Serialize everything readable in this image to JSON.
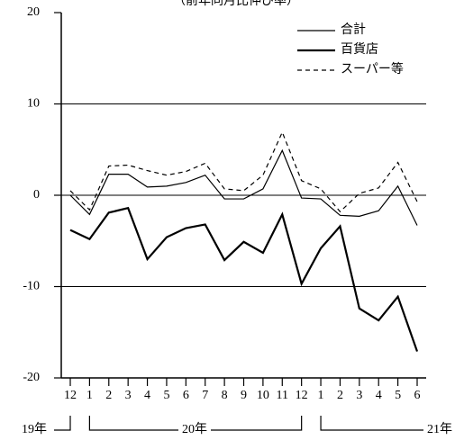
{
  "chart_data": {
    "type": "line",
    "title": "（前年同月比伸び率）",
    "categories": [
      "12",
      "1",
      "2",
      "3",
      "4",
      "5",
      "6",
      "7",
      "8",
      "9",
      "10",
      "11",
      "12",
      "1",
      "2",
      "3",
      "4",
      "5",
      "6"
    ],
    "x_groups": [
      "19年",
      "20年",
      "21年"
    ],
    "series": [
      {
        "name": "合計",
        "color": "#000000",
        "style": "thin",
        "values": [
          0.0,
          -2.1,
          2.3,
          2.3,
          0.9,
          1.0,
          1.4,
          2.2,
          -0.4,
          -0.4,
          0.7,
          4.9,
          -0.3,
          -0.4,
          -2.2,
          -2.3,
          -1.7,
          1.0,
          -3.3
        ]
      },
      {
        "name": "百貨店",
        "color": "#000000",
        "style": "thick",
        "values": [
          -3.8,
          -4.8,
          -1.9,
          -1.4,
          -7.0,
          -4.6,
          -3.6,
          -3.2,
          -7.1,
          -5.1,
          -6.3,
          -2.1,
          -9.7,
          -5.8,
          -3.4,
          -12.4,
          -13.7,
          -11.1,
          -17.1
        ]
      },
      {
        "name": "スーパー等",
        "color": "#000000",
        "style": "dashed",
        "values": [
          0.5,
          -1.6,
          3.2,
          3.3,
          2.7,
          2.2,
          2.6,
          3.5,
          0.7,
          0.5,
          2.2,
          6.9,
          1.6,
          0.7,
          -1.8,
          0.2,
          0.8,
          3.6,
          -0.7
        ]
      }
    ],
    "ylim": [
      -20,
      20
    ],
    "yticks": [
      -20,
      -10,
      0,
      10,
      20
    ],
    "grid": true,
    "legend": "upper right"
  }
}
